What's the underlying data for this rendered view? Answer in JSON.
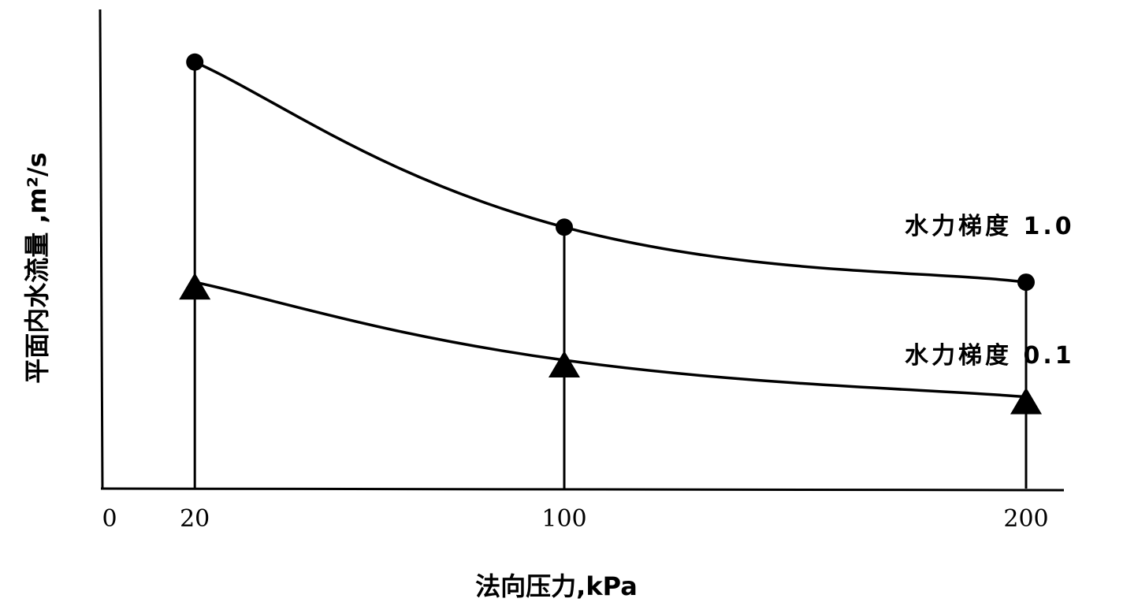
{
  "chart_data": {
    "type": "line",
    "title": "",
    "xlabel": "法向压力,kPa",
    "ylabel": "平面内水流量 ,m²/s",
    "origin_label": "0",
    "xlim": [
      0,
      205
    ],
    "ylim": [
      0,
      1.0
    ],
    "x_ticks": [
      20,
      100,
      200
    ],
    "x_tick_labels": [
      "20",
      "100",
      "200"
    ],
    "y_ticks_labeled": false,
    "series": [
      {
        "name": "水力梯度 1.0",
        "marker": "circle",
        "x": [
          20,
          100,
          200
        ],
        "y": [
          0.93,
          0.57,
          0.45
        ]
      },
      {
        "name": "水力梯度 0.1",
        "marker": "triangle",
        "x": [
          20,
          100,
          200
        ],
        "y": [
          0.45,
          0.28,
          0.2
        ]
      }
    ]
  }
}
